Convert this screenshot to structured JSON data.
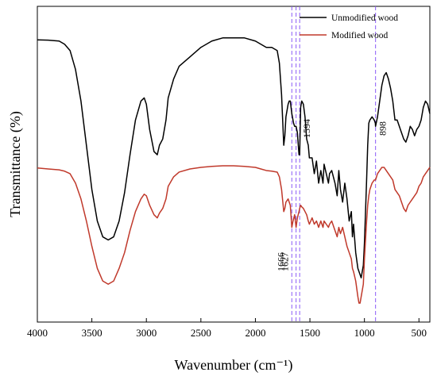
{
  "chart_data": {
    "type": "line",
    "xlabel": "Wavenumber (cm⁻¹)",
    "ylabel": "Transmittance  (%)",
    "xlim": [
      4000,
      400
    ],
    "x_reversed": true,
    "x_ticks": [
      4000,
      3500,
      3000,
      2500,
      2000,
      1500,
      1000,
      500
    ],
    "y_ticks_shown": false,
    "grid": false,
    "legend_position": "top-right",
    "series": [
      {
        "name": "Unmodified wood",
        "color": "#000000",
        "points": [
          [
            4000,
            0.894
          ],
          [
            3900,
            0.893
          ],
          [
            3800,
            0.89
          ],
          [
            3750,
            0.88
          ],
          [
            3700,
            0.86
          ],
          [
            3650,
            0.8
          ],
          [
            3600,
            0.7
          ],
          [
            3550,
            0.56
          ],
          [
            3500,
            0.42
          ],
          [
            3450,
            0.32
          ],
          [
            3400,
            0.27
          ],
          [
            3350,
            0.26
          ],
          [
            3300,
            0.27
          ],
          [
            3250,
            0.32
          ],
          [
            3200,
            0.41
          ],
          [
            3150,
            0.53
          ],
          [
            3100,
            0.64
          ],
          [
            3050,
            0.7
          ],
          [
            3020,
            0.71
          ],
          [
            3000,
            0.69
          ],
          [
            2970,
            0.61
          ],
          [
            2930,
            0.54
          ],
          [
            2900,
            0.53
          ],
          [
            2880,
            0.56
          ],
          [
            2850,
            0.58
          ],
          [
            2820,
            0.64
          ],
          [
            2800,
            0.71
          ],
          [
            2750,
            0.77
          ],
          [
            2700,
            0.81
          ],
          [
            2600,
            0.84
          ],
          [
            2500,
            0.87
          ],
          [
            2400,
            0.89
          ],
          [
            2300,
            0.9
          ],
          [
            2200,
            0.9
          ],
          [
            2100,
            0.9
          ],
          [
            2000,
            0.89
          ],
          [
            1950,
            0.88
          ],
          [
            1900,
            0.87
          ],
          [
            1850,
            0.87
          ],
          [
            1800,
            0.86
          ],
          [
            1780,
            0.82
          ],
          [
            1760,
            0.72
          ],
          [
            1740,
            0.56
          ],
          [
            1730,
            0.59
          ],
          [
            1720,
            0.65
          ],
          [
            1700,
            0.69
          ],
          [
            1690,
            0.7
          ],
          [
            1680,
            0.7
          ],
          [
            1666,
            0.66
          ],
          [
            1650,
            0.63
          ],
          [
            1640,
            0.62
          ],
          [
            1627,
            0.62
          ],
          [
            1615,
            0.6
          ],
          [
            1600,
            0.53
          ],
          [
            1594,
            0.53
          ],
          [
            1585,
            0.68
          ],
          [
            1575,
            0.7
          ],
          [
            1560,
            0.69
          ],
          [
            1545,
            0.65
          ],
          [
            1530,
            0.58
          ],
          [
            1515,
            0.56
          ],
          [
            1505,
            0.52
          ],
          [
            1480,
            0.52
          ],
          [
            1460,
            0.47
          ],
          [
            1440,
            0.51
          ],
          [
            1420,
            0.44
          ],
          [
            1400,
            0.48
          ],
          [
            1380,
            0.44
          ],
          [
            1370,
            0.5
          ],
          [
            1350,
            0.47
          ],
          [
            1330,
            0.44
          ],
          [
            1320,
            0.47
          ],
          [
            1300,
            0.48
          ],
          [
            1270,
            0.44
          ],
          [
            1250,
            0.4
          ],
          [
            1235,
            0.48
          ],
          [
            1220,
            0.42
          ],
          [
            1200,
            0.38
          ],
          [
            1180,
            0.44
          ],
          [
            1160,
            0.39
          ],
          [
            1140,
            0.32
          ],
          [
            1120,
            0.35
          ],
          [
            1110,
            0.27
          ],
          [
            1100,
            0.31
          ],
          [
            1080,
            0.22
          ],
          [
            1060,
            0.17
          ],
          [
            1040,
            0.15
          ],
          [
            1030,
            0.14
          ],
          [
            1010,
            0.18
          ],
          [
            1000,
            0.25
          ],
          [
            990,
            0.35
          ],
          [
            980,
            0.45
          ],
          [
            970,
            0.56
          ],
          [
            960,
            0.63
          ],
          [
            950,
            0.64
          ],
          [
            930,
            0.65
          ],
          [
            910,
            0.64
          ],
          [
            900,
            0.63
          ],
          [
            898,
            0.62
          ],
          [
            880,
            0.65
          ],
          [
            860,
            0.7
          ],
          [
            840,
            0.75
          ],
          [
            820,
            0.78
          ],
          [
            800,
            0.79
          ],
          [
            780,
            0.77
          ],
          [
            760,
            0.74
          ],
          [
            740,
            0.7
          ],
          [
            720,
            0.64
          ],
          [
            700,
            0.64
          ],
          [
            680,
            0.62
          ],
          [
            660,
            0.6
          ],
          [
            640,
            0.58
          ],
          [
            620,
            0.57
          ],
          [
            600,
            0.59
          ],
          [
            580,
            0.62
          ],
          [
            560,
            0.61
          ],
          [
            540,
            0.59
          ],
          [
            520,
            0.61
          ],
          [
            500,
            0.62
          ],
          [
            480,
            0.64
          ],
          [
            460,
            0.68
          ],
          [
            440,
            0.7
          ],
          [
            420,
            0.69
          ],
          [
            400,
            0.66
          ]
        ]
      },
      {
        "name": "Modified wood",
        "color": "#c0392b",
        "points": [
          [
            4000,
            0.488
          ],
          [
            3900,
            0.485
          ],
          [
            3800,
            0.482
          ],
          [
            3750,
            0.478
          ],
          [
            3700,
            0.47
          ],
          [
            3650,
            0.44
          ],
          [
            3600,
            0.39
          ],
          [
            3550,
            0.32
          ],
          [
            3500,
            0.24
          ],
          [
            3450,
            0.17
          ],
          [
            3400,
            0.13
          ],
          [
            3350,
            0.12
          ],
          [
            3300,
            0.13
          ],
          [
            3250,
            0.17
          ],
          [
            3200,
            0.22
          ],
          [
            3150,
            0.29
          ],
          [
            3100,
            0.35
          ],
          [
            3050,
            0.39
          ],
          [
            3020,
            0.405
          ],
          [
            3000,
            0.4
          ],
          [
            2970,
            0.37
          ],
          [
            2930,
            0.34
          ],
          [
            2900,
            0.33
          ],
          [
            2880,
            0.345
          ],
          [
            2850,
            0.36
          ],
          [
            2820,
            0.39
          ],
          [
            2800,
            0.43
          ],
          [
            2750,
            0.46
          ],
          [
            2700,
            0.475
          ],
          [
            2600,
            0.485
          ],
          [
            2500,
            0.49
          ],
          [
            2400,
            0.493
          ],
          [
            2300,
            0.495
          ],
          [
            2200,
            0.495
          ],
          [
            2100,
            0.493
          ],
          [
            2000,
            0.49
          ],
          [
            1950,
            0.485
          ],
          [
            1900,
            0.48
          ],
          [
            1850,
            0.478
          ],
          [
            1800,
            0.475
          ],
          [
            1780,
            0.46
          ],
          [
            1760,
            0.42
          ],
          [
            1740,
            0.35
          ],
          [
            1730,
            0.36
          ],
          [
            1720,
            0.38
          ],
          [
            1700,
            0.39
          ],
          [
            1690,
            0.38
          ],
          [
            1680,
            0.37
          ],
          [
            1666,
            0.3
          ],
          [
            1655,
            0.32
          ],
          [
            1640,
            0.34
          ],
          [
            1627,
            0.3
          ],
          [
            1615,
            0.33
          ],
          [
            1600,
            0.35
          ],
          [
            1594,
            0.36
          ],
          [
            1585,
            0.37
          ],
          [
            1575,
            0.365
          ],
          [
            1560,
            0.36
          ],
          [
            1545,
            0.35
          ],
          [
            1530,
            0.34
          ],
          [
            1515,
            0.32
          ],
          [
            1505,
            0.31
          ],
          [
            1480,
            0.33
          ],
          [
            1460,
            0.31
          ],
          [
            1440,
            0.32
          ],
          [
            1420,
            0.3
          ],
          [
            1400,
            0.32
          ],
          [
            1380,
            0.3
          ],
          [
            1370,
            0.32
          ],
          [
            1350,
            0.31
          ],
          [
            1330,
            0.3
          ],
          [
            1320,
            0.31
          ],
          [
            1300,
            0.32
          ],
          [
            1270,
            0.29
          ],
          [
            1250,
            0.27
          ],
          [
            1235,
            0.3
          ],
          [
            1220,
            0.28
          ],
          [
            1200,
            0.3
          ],
          [
            1180,
            0.27
          ],
          [
            1160,
            0.24
          ],
          [
            1140,
            0.22
          ],
          [
            1120,
            0.2
          ],
          [
            1110,
            0.17
          ],
          [
            1100,
            0.16
          ],
          [
            1080,
            0.13
          ],
          [
            1060,
            0.08
          ],
          [
            1050,
            0.06
          ],
          [
            1040,
            0.06
          ],
          [
            1030,
            0.08
          ],
          [
            1010,
            0.12
          ],
          [
            1000,
            0.2
          ],
          [
            990,
            0.26
          ],
          [
            980,
            0.32
          ],
          [
            970,
            0.37
          ],
          [
            960,
            0.4
          ],
          [
            950,
            0.42
          ],
          [
            930,
            0.44
          ],
          [
            910,
            0.45
          ],
          [
            898,
            0.45
          ],
          [
            880,
            0.47
          ],
          [
            860,
            0.48
          ],
          [
            840,
            0.49
          ],
          [
            820,
            0.49
          ],
          [
            800,
            0.48
          ],
          [
            780,
            0.47
          ],
          [
            760,
            0.46
          ],
          [
            740,
            0.45
          ],
          [
            720,
            0.42
          ],
          [
            700,
            0.41
          ],
          [
            680,
            0.4
          ],
          [
            660,
            0.38
          ],
          [
            640,
            0.36
          ],
          [
            620,
            0.35
          ],
          [
            600,
            0.37
          ],
          [
            580,
            0.38
          ],
          [
            560,
            0.39
          ],
          [
            540,
            0.4
          ],
          [
            520,
            0.41
          ],
          [
            500,
            0.43
          ],
          [
            480,
            0.44
          ],
          [
            460,
            0.46
          ],
          [
            440,
            0.47
          ],
          [
            420,
            0.48
          ],
          [
            400,
            0.49
          ]
        ]
      }
    ],
    "reference_lines": [
      {
        "x": 1666,
        "label": "1666",
        "label_row": "lower"
      },
      {
        "x": 1627,
        "label": "1627",
        "label_row": "lower"
      },
      {
        "x": 1594,
        "label": "1594",
        "label_row": "upper"
      },
      {
        "x": 898,
        "label": "898",
        "label_row": "upper"
      }
    ],
    "reference_line_color": "#8b5cf6"
  }
}
